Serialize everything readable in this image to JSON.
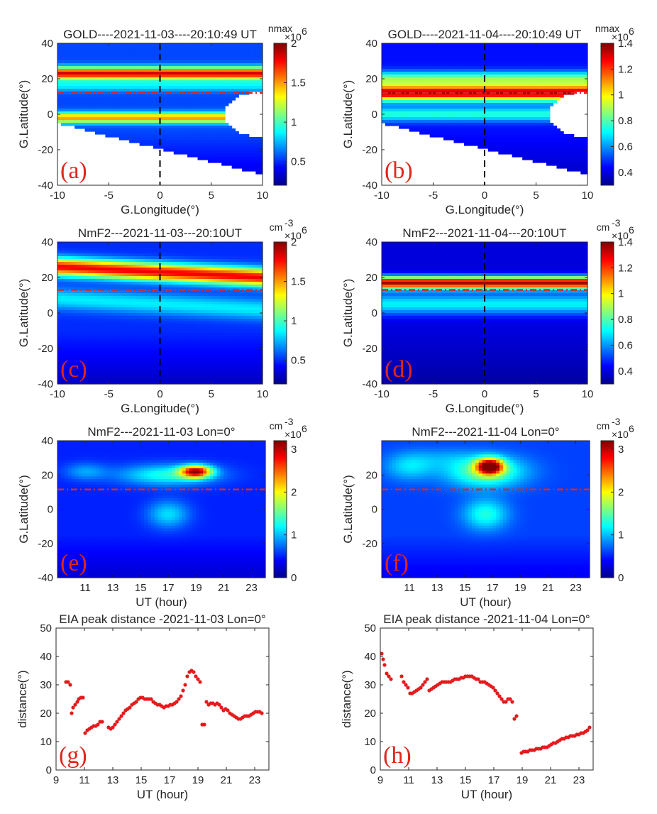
{
  "colors": {
    "peak_red": "#e41a1c",
    "dash_red": "#e0261b",
    "letter_red": "#e0261b",
    "axis": "#262626"
  },
  "chart_data": [
    {
      "type": "heatmap",
      "id": "a",
      "letter": "(a)",
      "colormap": "jet",
      "title": "GOLD----2021-11-03----20:10:49 UT",
      "xlabel": "G.Longitude(°)",
      "ylabel": "G.Latitude(°)",
      "xlim": [
        -10,
        10
      ],
      "ylim": [
        -40,
        40
      ],
      "xticks": [
        -10,
        -5,
        0,
        5,
        10
      ],
      "yticks": [
        -40,
        -20,
        0,
        20,
        40
      ],
      "colorbar": {
        "label": "nmax",
        "scale": "×10",
        "exp": "6",
        "range": [
          0.2,
          2.0
        ],
        "ticks": [
          0.5,
          1,
          1.5,
          2
        ]
      },
      "reference_lines": {
        "vertical_lon": 0,
        "horizontal_lat": 12
      },
      "bands": [
        {
          "lat": 23,
          "width": 3.5,
          "value": 1.85
        },
        {
          "lat": 16,
          "width": 3,
          "value": 0.85
        },
        {
          "lat": -2,
          "width": 3,
          "value": 1.5
        }
      ],
      "background_value": 0.55
    },
    {
      "type": "heatmap",
      "id": "b",
      "letter": "(b)",
      "colormap": "jet",
      "title": "GOLD----2021-11-04----20:10:49 UT",
      "xlabel": "G.Longitude(°)",
      "ylabel": "G.Latitude(°)",
      "xlim": [
        -10,
        10
      ],
      "ylim": [
        -40,
        40
      ],
      "xticks": [
        -10,
        -5,
        0,
        5,
        10
      ],
      "yticks": [
        -40,
        -20,
        0,
        20,
        40
      ],
      "colorbar": {
        "label": "nmax",
        "scale": "×10",
        "exp": "6",
        "range": [
          0.3,
          1.4
        ],
        "ticks": [
          0.4,
          0.6,
          0.8,
          1,
          1.2,
          1.4
        ]
      },
      "reference_lines": {
        "vertical_lon": 0,
        "horizontal_lat": 12
      },
      "bands": [
        {
          "lat": 12,
          "width": 4.5,
          "value": 1.35
        },
        {
          "lat": 20,
          "width": 4,
          "value": 0.85
        },
        {
          "lat": 0,
          "width": 4,
          "value": 0.75
        }
      ],
      "background_value": 0.45
    },
    {
      "type": "heatmap",
      "id": "c",
      "letter": "(c)",
      "colormap": "jet",
      "title": "NmF2---2021-11-03---20:10UT",
      "xlabel": "G.Longitude(°)",
      "ylabel": "G.Latitude(°)",
      "xlim": [
        -10,
        10
      ],
      "ylim": [
        -40,
        40
      ],
      "xticks": [
        -10,
        -5,
        0,
        5,
        10
      ],
      "yticks": [
        -40,
        -20,
        0,
        20,
        40
      ],
      "colorbar": {
        "label": "cm",
        "label_sup": "-3",
        "scale": "×10",
        "exp": "6",
        "range": [
          0.2,
          2.0
        ],
        "ticks": [
          0.5,
          1,
          1.5,
          2
        ]
      },
      "reference_lines": {
        "vertical_lon": 0,
        "horizontal_lat": 13
      },
      "bands": [
        {
          "lat": 23,
          "width": 5,
          "value": 1.8
        },
        {
          "lat": 5,
          "width": 6,
          "value": 0.85
        }
      ],
      "background_value": 0.5
    },
    {
      "type": "heatmap",
      "id": "d",
      "letter": "(d)",
      "colormap": "jet",
      "title": "NmF2---2021-11-04---20:10UT",
      "xlabel": "G.Longitude(°)",
      "ylabel": "G.Latitude(°)",
      "xlim": [
        -10,
        10
      ],
      "ylim": [
        -40,
        40
      ],
      "xticks": [
        -10,
        -5,
        0,
        5,
        10
      ],
      "yticks": [
        -40,
        -20,
        0,
        20,
        40
      ],
      "colorbar": {
        "label": "cm",
        "label_sup": "-3",
        "scale": "×10",
        "exp": "6",
        "range": [
          0.3,
          1.4
        ],
        "ticks": [
          0.4,
          0.6,
          0.8,
          1,
          1.2,
          1.4
        ]
      },
      "reference_lines": {
        "vertical_lon": 0,
        "horizontal_lat": 13
      },
      "bands": [
        {
          "lat": 17,
          "width": 3.5,
          "value": 1.35
        },
        {
          "lat": 5,
          "width": 6,
          "value": 0.7
        }
      ],
      "background_value": 0.4
    },
    {
      "type": "heatmap",
      "id": "e",
      "letter": "(e)",
      "colormap": "jet",
      "title": "NmF2---2021-11-03  Lon=0°",
      "xlabel": "UT (hour)",
      "ylabel": "G.Latitude(°)",
      "xlim": [
        9,
        24
      ],
      "ylim": [
        -40,
        40
      ],
      "xticks": [
        11,
        13,
        15,
        17,
        19,
        21,
        23
      ],
      "yticks": [
        -40,
        -20,
        0,
        20,
        40
      ],
      "colorbar": {
        "label": "cm",
        "label_sup": "-3",
        "scale": "×10",
        "exp": "6",
        "range": [
          0,
          3.2
        ],
        "ticks": [
          0,
          1,
          2,
          3
        ]
      },
      "reference_lines": {
        "horizontal_lat": 11.5
      },
      "blobs": [
        {
          "t": 19,
          "lat": 22,
          "st": 1.1,
          "sl": 3.5,
          "v": 2.8
        },
        {
          "t": 17,
          "lat": 20,
          "st": 3.5,
          "sl": 6,
          "v": 1.3
        },
        {
          "t": 17,
          "lat": -3,
          "st": 1.5,
          "sl": 8,
          "v": 1.1
        },
        {
          "t": 11,
          "lat": 22,
          "st": 1.5,
          "sl": 5,
          "v": 0.9
        }
      ],
      "background_value": 0.5
    },
    {
      "type": "heatmap",
      "id": "f",
      "letter": "(f)",
      "colormap": "jet",
      "title": "NmF2---2021-11-04  Lon=0°",
      "xlabel": "UT (hour)",
      "ylabel": "G.Latitude(°)",
      "xlim": [
        9,
        24
      ],
      "ylim": [
        -40,
        40
      ],
      "xticks": [
        11,
        13,
        15,
        17,
        19,
        21,
        23
      ],
      "yticks": [
        -20,
        0,
        20
      ],
      "colorbar": {
        "label": "cm",
        "label_sup": "-3",
        "scale": "×10",
        "exp": "6",
        "range": [
          0,
          3.2
        ],
        "ticks": [
          0,
          1,
          2,
          3
        ]
      },
      "reference_lines": {
        "horizontal_lat": 11.5
      },
      "blobs": [
        {
          "t": 16.8,
          "lat": 25,
          "st": 0.9,
          "sl": 4.5,
          "v": 3.2
        },
        {
          "t": 16.5,
          "lat": 22,
          "st": 2.8,
          "sl": 9,
          "v": 1.6
        },
        {
          "t": 16.5,
          "lat": -3,
          "st": 1.6,
          "sl": 9,
          "v": 1.3
        },
        {
          "t": 11,
          "lat": 25,
          "st": 1.8,
          "sl": 8,
          "v": 1.1
        },
        {
          "t": 13.5,
          "lat": 30,
          "st": 2.5,
          "sl": 6,
          "v": 0.8
        }
      ],
      "background_value": 0.6
    },
    {
      "type": "scatter",
      "id": "g",
      "letter": "(g)",
      "title": "EIA peak distance -2021-11-03  Lon=0°",
      "xlabel": "UT (hour)",
      "ylabel": "distance(°)",
      "xlim": [
        9,
        24
      ],
      "ylim": [
        0,
        50
      ],
      "xticks": [
        9,
        11,
        13,
        15,
        17,
        19,
        21,
        23
      ],
      "yticks": [
        0,
        10,
        20,
        30,
        40,
        50
      ],
      "series": [
        {
          "name": "EIA peak distance",
          "color": "#e41a1c",
          "x": [
            9.7,
            9.85,
            10.0,
            10.1,
            10.2,
            10.35,
            10.5,
            10.6,
            10.75,
            10.9,
            11.05,
            11.2,
            11.35,
            11.5,
            11.65,
            11.8,
            11.95,
            12.1,
            12.25,
            12.7,
            12.85,
            13.0,
            13.15,
            13.3,
            13.45,
            13.6,
            13.75,
            13.9,
            14.05,
            14.2,
            14.35,
            14.5,
            14.65,
            14.8,
            14.95,
            15.1,
            15.25,
            15.4,
            15.55,
            15.7,
            15.85,
            16.0,
            16.15,
            16.3,
            16.45,
            16.6,
            16.75,
            16.9,
            17.05,
            17.2,
            17.35,
            17.5,
            17.65,
            17.8,
            17.95,
            18.1,
            18.25,
            18.4,
            18.55,
            18.7,
            18.85,
            19.0,
            19.15,
            19.3,
            19.45,
            19.6,
            19.75,
            19.9,
            20.05,
            20.2,
            20.35,
            20.5,
            20.65,
            20.8,
            20.95,
            21.1,
            21.25,
            21.4,
            21.55,
            21.7,
            21.85,
            22.0,
            22.15,
            22.3,
            22.45,
            22.6,
            22.75,
            22.9,
            23.05,
            23.2,
            23.35,
            23.5
          ],
          "y": [
            31,
            31,
            30,
            20,
            22,
            23,
            24,
            25,
            25.5,
            25.5,
            13,
            14,
            14.5,
            15,
            15.5,
            15.5,
            16,
            17,
            17,
            15,
            14.5,
            15,
            16,
            17,
            18,
            19,
            20,
            21,
            21.5,
            22,
            23,
            23.5,
            24,
            25,
            25.5,
            25.5,
            25,
            25,
            25,
            25,
            24,
            23.5,
            23,
            23,
            22.5,
            22,
            22.5,
            22.5,
            23,
            23,
            23.5,
            24,
            25,
            26,
            28,
            30,
            33,
            34.5,
            35,
            34.5,
            33,
            32,
            31,
            16,
            16,
            24,
            23,
            23.5,
            23.5,
            23,
            23.5,
            23,
            22,
            21,
            21.5,
            21,
            20,
            19.5,
            19,
            18.5,
            18,
            18,
            18.5,
            19,
            19,
            19,
            19.5,
            20,
            20.5,
            20.5,
            20.5,
            20
          ]
        }
      ]
    },
    {
      "type": "scatter",
      "id": "h",
      "letter": "(h)",
      "title": "EIA peak distance -2021-11-04  Lon=0°",
      "xlabel": "UT (hour)",
      "ylabel": "distance(°)",
      "xlim": [
        9,
        24
      ],
      "ylim": [
        0,
        50
      ],
      "xticks": [
        9,
        11,
        13,
        15,
        17,
        19,
        21,
        23
      ],
      "yticks": [
        0,
        10,
        20,
        30,
        40,
        50
      ],
      "series": [
        {
          "name": "EIA peak distance",
          "color": "#e41a1c",
          "x": [
            9.1,
            9.2,
            9.3,
            9.45,
            9.6,
            9.75,
            10.5,
            10.65,
            10.8,
            10.95,
            11.1,
            11.25,
            11.4,
            11.55,
            11.7,
            11.85,
            12.0,
            12.15,
            12.3,
            12.45,
            12.6,
            12.75,
            12.9,
            13.05,
            13.2,
            13.35,
            13.5,
            13.65,
            13.8,
            13.95,
            14.1,
            14.25,
            14.4,
            14.55,
            14.7,
            14.85,
            15.0,
            15.15,
            15.3,
            15.45,
            15.6,
            15.75,
            15.9,
            16.05,
            16.2,
            16.35,
            16.5,
            16.65,
            16.8,
            16.95,
            17.1,
            17.25,
            17.4,
            17.55,
            17.7,
            17.85,
            18.0,
            18.15,
            18.3,
            18.45,
            18.6,
            18.95,
            19.1,
            19.25,
            19.4,
            19.55,
            19.7,
            19.85,
            20.0,
            20.15,
            20.3,
            20.45,
            20.6,
            20.75,
            20.9,
            21.05,
            21.2,
            21.35,
            21.5,
            21.65,
            21.8,
            21.95,
            22.1,
            22.25,
            22.4,
            22.55,
            22.7,
            22.85,
            23.0,
            23.15,
            23.3,
            23.45,
            23.6,
            23.75
          ],
          "y": [
            41,
            39,
            37,
            34,
            33,
            32,
            33,
            31,
            30,
            29,
            27,
            27,
            27.5,
            28,
            28.5,
            29,
            30,
            31,
            32,
            28,
            28.5,
            29,
            29.5,
            30,
            30.5,
            31,
            31,
            31,
            31,
            31,
            31.5,
            32,
            32,
            32,
            32.5,
            32.5,
            33,
            33,
            33,
            33,
            32.5,
            32,
            32,
            31,
            31,
            31,
            30.5,
            30,
            29.5,
            29,
            28,
            27,
            26,
            25,
            24,
            24,
            25,
            25,
            24,
            18,
            19,
            6,
            6.5,
            6.5,
            6.5,
            7,
            7,
            7,
            7.5,
            7.5,
            7.5,
            8,
            8,
            8,
            8.5,
            9,
            9.5,
            9.5,
            10,
            10.5,
            11,
            11,
            11.5,
            11.5,
            12,
            12,
            12,
            12.5,
            12.5,
            13,
            13,
            13.5,
            14,
            15
          ]
        }
      ]
    }
  ]
}
